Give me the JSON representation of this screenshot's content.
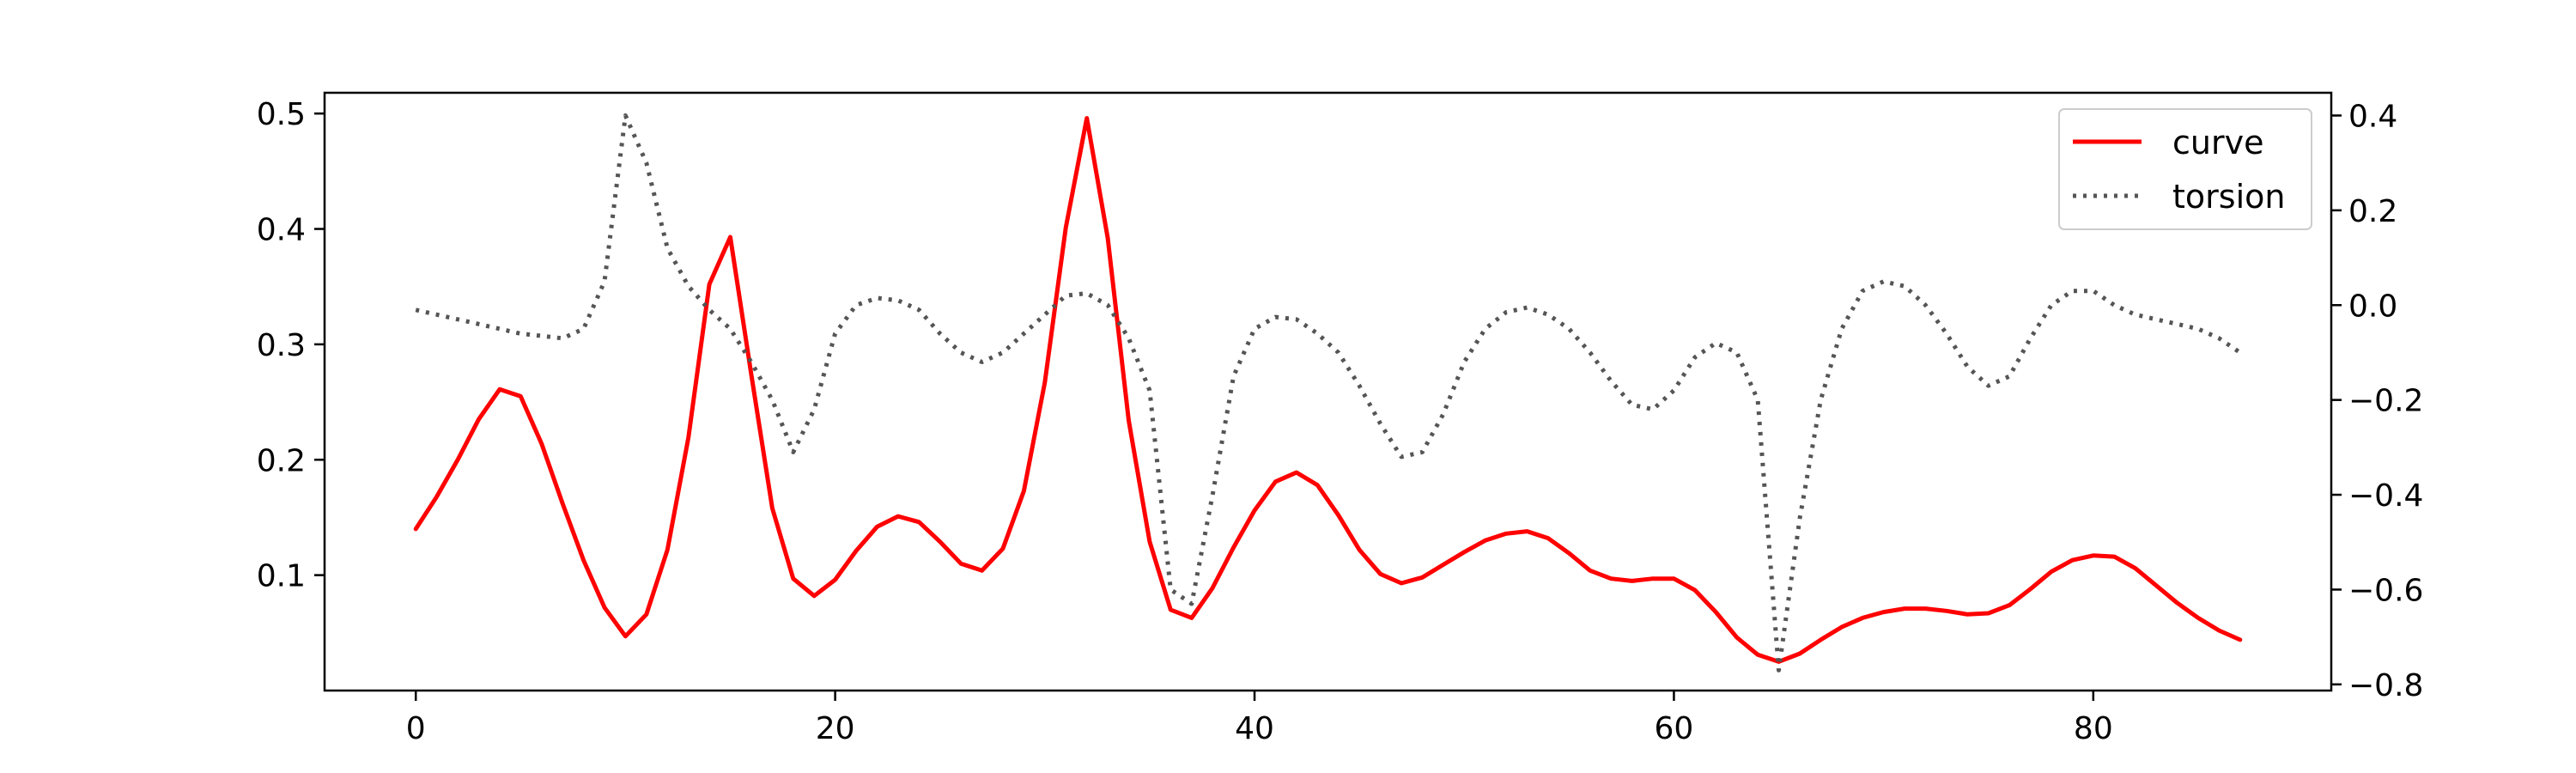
{
  "chart_data": {
    "type": "line",
    "title": "",
    "xlabel": "",
    "ylabel": "",
    "xlim": [
      -4.35,
      91.35
    ],
    "ylim_left": [
      0.0,
      0.518
    ],
    "ylim_right": [
      -0.813,
      0.448
    ],
    "x_ticks": [
      0,
      20,
      40,
      60,
      80
    ],
    "y_left_ticks": [
      {
        "value": 0.1,
        "label": "0.1"
      },
      {
        "value": 0.2,
        "label": "0.2"
      },
      {
        "value": 0.3,
        "label": "0.3"
      },
      {
        "value": 0.4,
        "label": "0.4"
      },
      {
        "value": 0.5,
        "label": "0.5"
      }
    ],
    "y_right_ticks": [
      {
        "value": 0.4,
        "label": "0.4"
      },
      {
        "value": 0.2,
        "label": "0.2"
      },
      {
        "value": 0.0,
        "label": "0.0"
      },
      {
        "value": -0.2,
        "label": "−0.2"
      },
      {
        "value": -0.4,
        "label": "−0.4"
      },
      {
        "value": -0.6,
        "label": "−0.6"
      },
      {
        "value": -0.8,
        "label": "−0.8"
      }
    ],
    "grid": false,
    "legend_position": "top-right",
    "series": [
      {
        "name": "curve",
        "axis": "left",
        "color": "#ff0000",
        "style": "solid",
        "x": [
          0,
          1,
          2,
          3,
          4,
          5,
          6,
          7,
          8,
          9,
          10,
          11,
          12,
          13,
          14,
          15,
          16,
          17,
          18,
          19,
          20,
          21,
          22,
          23,
          24,
          25,
          26,
          27,
          28,
          29,
          30,
          31,
          32,
          33,
          34,
          35,
          36,
          37,
          38,
          39,
          40,
          41,
          42,
          43,
          44,
          45,
          46,
          47,
          48,
          49,
          50,
          51,
          52,
          53,
          54,
          55,
          56,
          57,
          58,
          59,
          60,
          61,
          62,
          63,
          64,
          65,
          66,
          67,
          68,
          69,
          70,
          71,
          72,
          73,
          74,
          75,
          76,
          77,
          78,
          79,
          80,
          81,
          82,
          83,
          84,
          85,
          86,
          87
        ],
        "values": [
          0.14,
          0.168,
          0.2,
          0.235,
          0.261,
          0.255,
          0.214,
          0.162,
          0.113,
          0.072,
          0.047,
          0.066,
          0.122,
          0.219,
          0.352,
          0.393,
          0.274,
          0.158,
          0.097,
          0.082,
          0.096,
          0.121,
          0.142,
          0.151,
          0.146,
          0.129,
          0.11,
          0.104,
          0.123,
          0.173,
          0.267,
          0.401,
          0.496,
          0.392,
          0.234,
          0.129,
          0.07,
          0.063,
          0.089,
          0.124,
          0.156,
          0.181,
          0.189,
          0.178,
          0.152,
          0.122,
          0.101,
          0.093,
          0.098,
          0.109,
          0.12,
          0.13,
          0.136,
          0.138,
          0.132,
          0.119,
          0.104,
          0.097,
          0.095,
          0.097,
          0.097,
          0.087,
          0.068,
          0.046,
          0.031,
          0.025,
          0.032,
          0.044,
          0.055,
          0.063,
          0.068,
          0.071,
          0.071,
          0.069,
          0.066,
          0.067,
          0.074,
          0.088,
          0.103,
          0.113,
          0.117,
          0.116,
          0.106,
          0.091,
          0.076,
          0.063,
          0.052,
          0.044
        ]
      },
      {
        "name": "torsion",
        "axis": "right",
        "color": "#555555",
        "style": "dotted",
        "x": [
          0,
          1,
          2,
          3,
          4,
          5,
          6,
          7,
          8,
          9,
          10,
          11,
          12,
          13,
          14,
          15,
          16,
          17,
          18,
          19,
          20,
          21,
          22,
          23,
          24,
          25,
          26,
          27,
          28,
          29,
          30,
          31,
          32,
          33,
          34,
          35,
          36,
          37,
          38,
          39,
          40,
          41,
          42,
          43,
          44,
          45,
          46,
          47,
          48,
          49,
          50,
          51,
          52,
          53,
          54,
          55,
          56,
          57,
          58,
          59,
          60,
          61,
          62,
          63,
          64,
          65,
          66,
          67,
          68,
          69,
          70,
          71,
          72,
          73,
          74,
          75,
          76,
          77,
          78,
          79,
          80,
          81,
          82,
          83,
          84,
          85,
          86,
          87
        ],
        "values": [
          -0.01,
          -0.02,
          -0.03,
          -0.04,
          -0.05,
          -0.06,
          -0.065,
          -0.07,
          -0.05,
          0.05,
          0.4,
          0.3,
          0.12,
          0.04,
          -0.01,
          -0.05,
          -0.12,
          -0.2,
          -0.31,
          -0.22,
          -0.06,
          0.0,
          0.015,
          0.01,
          -0.01,
          -0.06,
          -0.1,
          -0.12,
          -0.1,
          -0.06,
          -0.02,
          0.02,
          0.025,
          0.0,
          -0.07,
          -0.18,
          -0.6,
          -0.63,
          -0.4,
          -0.15,
          -0.05,
          -0.025,
          -0.03,
          -0.06,
          -0.1,
          -0.17,
          -0.25,
          -0.32,
          -0.31,
          -0.23,
          -0.12,
          -0.05,
          -0.015,
          -0.005,
          -0.02,
          -0.05,
          -0.1,
          -0.16,
          -0.21,
          -0.22,
          -0.18,
          -0.11,
          -0.08,
          -0.1,
          -0.2,
          -0.77,
          -0.45,
          -0.2,
          -0.05,
          0.03,
          0.05,
          0.04,
          0.0,
          -0.06,
          -0.13,
          -0.17,
          -0.15,
          -0.07,
          0.0,
          0.03,
          0.03,
          0.0,
          -0.02,
          -0.03,
          -0.04,
          -0.05,
          -0.07,
          -0.1
        ]
      }
    ]
  }
}
